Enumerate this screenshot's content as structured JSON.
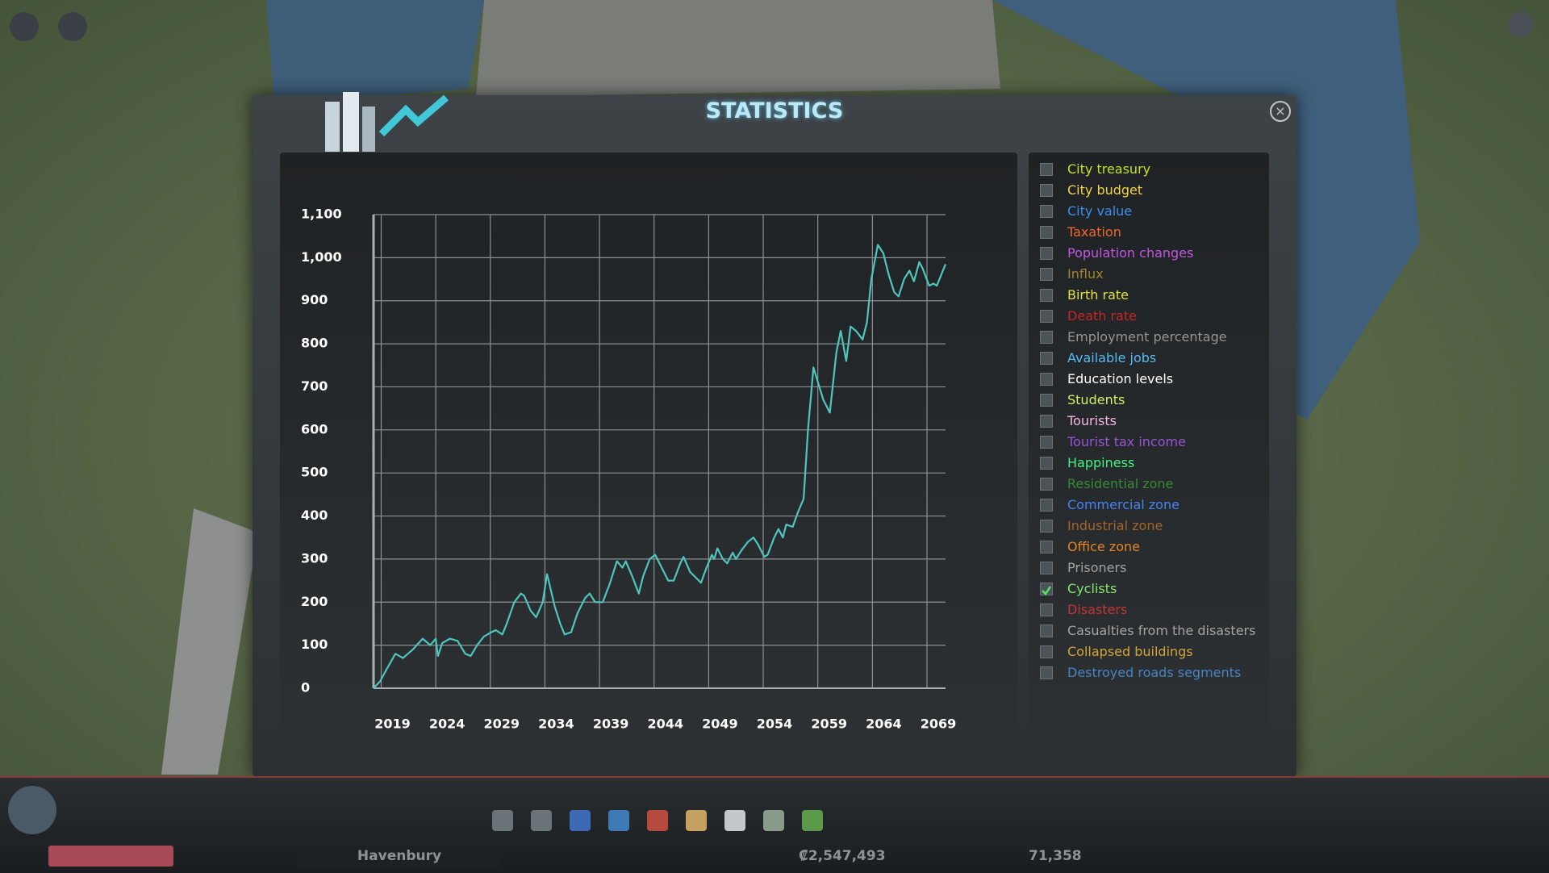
{
  "window": {
    "title": "STATISTICS"
  },
  "chart_data": {
    "type": "line",
    "x": [
      2018.3,
      2018.9,
      2019.5,
      2020.3,
      2021.0,
      2021.9,
      2022.8,
      2023.5,
      2024.0,
      2024.2,
      2024.6,
      2025.3,
      2026.0,
      2026.7,
      2027.2,
      2027.8,
      2028.4,
      2029.1,
      2029.5,
      2030.1,
      2030.5,
      2031.2,
      2031.8,
      2032.1,
      2032.7,
      2033.2,
      2033.8,
      2034.2,
      2034.9,
      2035.4,
      2035.8,
      2036.4,
      2037.0,
      2037.7,
      2038.1,
      2038.6,
      2039.3,
      2039.9,
      2040.6,
      2041.1,
      2041.4,
      2042.0,
      2042.6,
      2043.0,
      2043.6,
      2044.1,
      2044.7,
      2045.3,
      2045.8,
      2046.4,
      2046.7,
      2047.3,
      2047.9,
      2048.3,
      2048.8,
      2049.3,
      2049.5,
      2049.8,
      2050.3,
      2050.7,
      2051.2,
      2051.5,
      2052.0,
      2052.6,
      2053.1,
      2053.5,
      2054.1,
      2054.4,
      2055.0,
      2055.4,
      2055.8,
      2056.1,
      2056.7,
      2057.2,
      2057.7,
      2058.1,
      2058.6,
      2058.9,
      2059.5,
      2060.1,
      2060.7,
      2061.1,
      2061.6,
      2062.0,
      2062.5,
      2063.1,
      2063.5,
      2063.9,
      2064.5,
      2065.0,
      2065.5,
      2066.0,
      2066.4,
      2066.9,
      2067.4,
      2067.8,
      2068.3,
      2068.6,
      2069.2,
      2069.6,
      2069.9,
      2070.3,
      2070.7
    ],
    "series": [
      {
        "color": "#4fc6bd",
        "values": [
          0,
          16,
          44,
          80,
          70,
          90,
          115,
          100,
          115,
          75,
          105,
          115,
          110,
          80,
          75,
          100,
          120,
          130,
          135,
          125,
          150,
          200,
          220,
          215,
          180,
          165,
          200,
          265,
          190,
          150,
          125,
          130,
          175,
          210,
          220,
          200,
          200,
          240,
          295,
          280,
          295,
          260,
          220,
          260,
          300,
          310,
          280,
          250,
          250,
          290,
          305,
          270,
          255,
          245,
          280,
          310,
          300,
          325,
          300,
          290,
          315,
          300,
          320,
          340,
          350,
          335,
          305,
          310,
          350,
          370,
          350,
          380,
          375,
          410,
          440,
          600,
          745,
          720,
          670,
          640,
          780,
          830,
          760,
          840,
          830,
          810,
          850,
          950,
          1030,
          1010,
          960,
          920,
          910,
          950,
          970,
          945,
          990,
          975,
          935,
          940,
          935,
          960,
          985
        ]
      }
    ],
    "xlim": [
      2018.3,
      2070.7
    ],
    "xticks": [
      2019,
      2024,
      2029,
      2034,
      2039,
      2044,
      2049,
      2054,
      2059,
      2064,
      2069
    ],
    "ylim": [
      0,
      1100
    ],
    "yticks": [
      0,
      100,
      200,
      300,
      400,
      500,
      600,
      700,
      800,
      900,
      {
        "value": 1000,
        "label": "1,000"
      },
      {
        "value": 1100,
        "label": "1,100"
      }
    ],
    "grid": true
  },
  "legend_items": [
    {
      "label": "City treasury",
      "color": "#c6e02a",
      "checked": false
    },
    {
      "label": "City budget",
      "color": "#f2d445",
      "checked": false
    },
    {
      "label": "City value",
      "color": "#3c8ef0",
      "checked": false
    },
    {
      "label": "Taxation",
      "color": "#f2662a",
      "checked": false
    },
    {
      "label": "Population changes",
      "color": "#c257e2",
      "checked": false
    },
    {
      "label": "Influx",
      "color": "#a2832a",
      "checked": false
    },
    {
      "label": "Birth rate",
      "color": "#e3e048",
      "checked": false
    },
    {
      "label": "Death rate",
      "color": "#c42626",
      "checked": false
    },
    {
      "label": "Employment percentage",
      "color": "#959595",
      "checked": false
    },
    {
      "label": "Available jobs",
      "color": "#55bbf2",
      "checked": false
    },
    {
      "label": "Education levels",
      "color": "#ffffff",
      "checked": false
    },
    {
      "label": "Students",
      "color": "#cbf268",
      "checked": false
    },
    {
      "label": "Tourists",
      "color": "#f8b6e2",
      "checked": false
    },
    {
      "label": "Tourist tax income",
      "color": "#9555d4",
      "checked": false
    },
    {
      "label": "Happiness",
      "color": "#44f285",
      "checked": false
    },
    {
      "label": "Residential zone",
      "color": "#348a34",
      "checked": false
    },
    {
      "label": "Commercial zone",
      "color": "#4484f2",
      "checked": false
    },
    {
      "label": "Industrial zone",
      "color": "#a46428",
      "checked": false
    },
    {
      "label": "Office zone",
      "color": "#e58525",
      "checked": false
    },
    {
      "label": "Prisoners",
      "color": "#a4a4a4",
      "checked": false
    },
    {
      "label": "Cyclists",
      "color": "#86e46a",
      "checked": true
    },
    {
      "label": "Disasters",
      "color": "#c43434",
      "checked": false
    },
    {
      "label": "Casualties from the disasters",
      "color": "#a4a4a4",
      "checked": false
    },
    {
      "label": "Collapsed buildings",
      "color": "#d4a535",
      "checked": false
    },
    {
      "label": "Destroyed roads segments",
      "color": "#4684c4",
      "checked": false
    }
  ],
  "status_bar": {
    "city_name": "Havenbury",
    "money": "₡2,547,493",
    "population": "71,358"
  }
}
